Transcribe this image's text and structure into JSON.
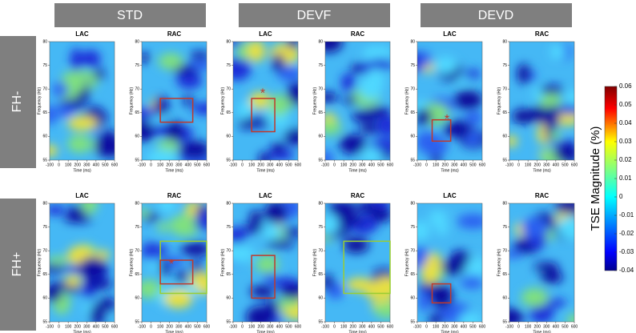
{
  "columns": [
    "STD",
    "DEVF",
    "DEVD"
  ],
  "rows": [
    "FH-",
    "FH+"
  ],
  "axes": {
    "xlabel": "Time (ms)",
    "ylabel": "Frequency (Hz)",
    "xlim": [
      -100,
      600
    ],
    "xticks": [
      -100,
      0,
      100,
      200,
      300,
      400,
      500,
      600
    ],
    "ylim": [
      55,
      80
    ],
    "yticks": [
      55,
      60,
      65,
      70,
      75,
      80
    ]
  },
  "panels": [
    {
      "title": "LAC",
      "boxes": []
    },
    {
      "title": "RAC",
      "boxes": [
        {
          "color": "#c0392b",
          "t": [
            100,
            450
          ],
          "f": [
            63,
            68
          ]
        }
      ]
    },
    {
      "title": "LAC",
      "boxes": [
        {
          "color": "#c0392b",
          "t": [
            100,
            350
          ],
          "f": [
            61,
            68
          ]
        }
      ],
      "asterisk": {
        "text": "*",
        "color": "#c0392b",
        "t": 220,
        "f": 69.5
      }
    },
    {
      "title": "RAC",
      "boxes": []
    },
    {
      "title": "LAC",
      "boxes": [
        {
          "color": "#c0392b",
          "t": [
            60,
            260
          ],
          "f": [
            59,
            63.5
          ]
        }
      ],
      "asterisk": {
        "text": "*",
        "color": "#c0392b",
        "t": 220,
        "f": 64
      }
    },
    {
      "title": "RAC",
      "boxes": []
    },
    {
      "title": "LAC",
      "boxes": []
    },
    {
      "title": "RAC",
      "boxes": [
        {
          "color": "#9acd32",
          "t": [
            100,
            600
          ],
          "f": [
            61,
            72
          ]
        },
        {
          "color": "#c0392b",
          "t": [
            100,
            450
          ],
          "f": [
            63,
            68
          ]
        }
      ],
      "asterisk": {
        "text": "*",
        "color": "#c0392b",
        "t": 220,
        "f": 67.5
      }
    },
    {
      "title": "LAC",
      "boxes": [
        {
          "color": "#c0392b",
          "t": [
            100,
            350
          ],
          "f": [
            60,
            69
          ]
        }
      ]
    },
    {
      "title": "RAC",
      "boxes": [
        {
          "color": "#9acd32",
          "t": [
            100,
            600
          ],
          "f": [
            61,
            72
          ]
        }
      ]
    },
    {
      "title": "LAC",
      "boxes": [
        {
          "color": "#c0392b",
          "t": [
            60,
            260
          ],
          "f": [
            59,
            63
          ]
        }
      ]
    },
    {
      "title": "RAC",
      "boxes": []
    }
  ],
  "colorbar": {
    "label": "TSE Magnitude (%)",
    "lim": [
      -0.04,
      0.06
    ],
    "ticks": [
      0.06,
      0.05,
      0.04,
      0.03,
      0.02,
      0.01,
      0,
      -0.01,
      -0.02,
      -0.03,
      -0.04
    ]
  }
}
